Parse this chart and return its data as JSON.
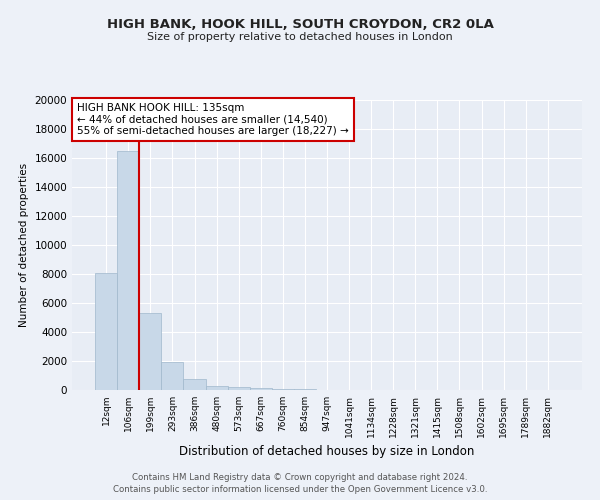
{
  "title1": "HIGH BANK, HOOK HILL, SOUTH CROYDON, CR2 0LA",
  "title2": "Size of property relative to detached houses in London",
  "xlabel": "Distribution of detached houses by size in London",
  "ylabel": "Number of detached properties",
  "categories": [
    "12sqm",
    "106sqm",
    "199sqm",
    "293sqm",
    "386sqm",
    "480sqm",
    "573sqm",
    "667sqm",
    "760sqm",
    "854sqm",
    "947sqm",
    "1041sqm",
    "1134sqm",
    "1228sqm",
    "1321sqm",
    "1415sqm",
    "1508sqm",
    "1602sqm",
    "1695sqm",
    "1789sqm",
    "1882sqm"
  ],
  "values": [
    8100,
    16500,
    5300,
    1900,
    750,
    310,
    200,
    150,
    90,
    50,
    25,
    12,
    8,
    5,
    4,
    3,
    2,
    2,
    1,
    1,
    1
  ],
  "bar_color": "#c8d8e8",
  "bar_edge_color": "#a0b8cc",
  "vline_color": "#cc0000",
  "vline_pos": 1.5,
  "annotation_text": "HIGH BANK HOOK HILL: 135sqm\n← 44% of detached houses are smaller (14,540)\n55% of semi-detached houses are larger (18,227) →",
  "annotation_box_color": "#ffffff",
  "annotation_box_edge": "#cc0000",
  "ylim": [
    0,
    20000
  ],
  "yticks": [
    0,
    2000,
    4000,
    6000,
    8000,
    10000,
    12000,
    14000,
    16000,
    18000,
    20000
  ],
  "fig_bg_color": "#edf1f8",
  "plot_bg_color": "#e8edf5",
  "grid_color": "#ffffff",
  "footer1": "Contains HM Land Registry data © Crown copyright and database right 2024.",
  "footer2": "Contains public sector information licensed under the Open Government Licence v3.0."
}
